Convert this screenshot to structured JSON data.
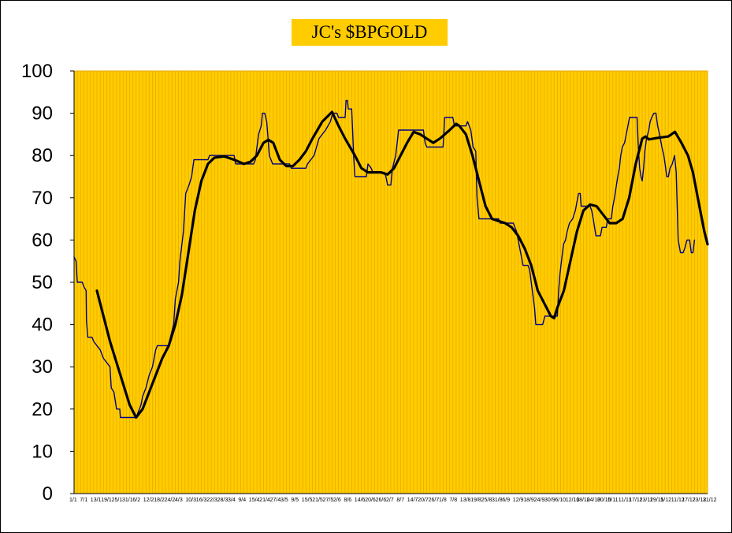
{
  "chart_data": {
    "type": "line",
    "title": "JC's $BPGOLD",
    "xlabel": "",
    "ylabel": "",
    "ylim": [
      0,
      100
    ],
    "yticks": [
      0,
      10,
      20,
      30,
      40,
      50,
      60,
      70,
      80,
      90,
      100
    ],
    "grid": "dense vertical gridlines",
    "legend": "none",
    "x_tick_labels": [
      "1/1",
      "7/1",
      "13/1",
      "19/1",
      "25/1",
      "31/1",
      "6/2",
      "12/2",
      "18/2",
      "24/2",
      "4/3",
      "10/3",
      "16/3",
      "22/3",
      "28/3",
      "3/4",
      "9/4",
      "15/4",
      "21/4",
      "27/4",
      "3/5",
      "9/5",
      "15/5",
      "21/5",
      "27/5",
      "2/6",
      "8/6",
      "14/6",
      "20/6",
      "26/6",
      "2/7",
      "8/7",
      "14/7",
      "20/7",
      "26/7",
      "1/8",
      "7/8",
      "13/8",
      "19/8",
      "25/8",
      "31/8",
      "6/9",
      "12/9",
      "18/9",
      "24/9",
      "30/9",
      "6/10",
      "12/10",
      "18/10",
      "24/10",
      "30/10",
      "5/11",
      "11/11",
      "17/11",
      "23/11",
      "29/11",
      "5/12",
      "11/12",
      "17/12",
      "23/12",
      "31/12"
    ],
    "colors": {
      "background": "#ffcc00",
      "grid": "#e6a800",
      "series_raw": "#000080",
      "series_smooth": "#000000",
      "plot_border": "#e6a800"
    },
    "series": [
      {
        "style": "thin navy step line",
        "points": [
          [
            0,
            56
          ],
          [
            0.6,
            55
          ],
          [
            1,
            50
          ],
          [
            2.5,
            50
          ],
          [
            3,
            49
          ],
          [
            3.7,
            48
          ],
          [
            3.8,
            41
          ],
          [
            4.2,
            37
          ],
          [
            5.5,
            37
          ],
          [
            6,
            36
          ],
          [
            7,
            35
          ],
          [
            8,
            34
          ],
          [
            9,
            32
          ],
          [
            10,
            31
          ],
          [
            11,
            30
          ],
          [
            11.4,
            25
          ],
          [
            12.2,
            24
          ],
          [
            13,
            20
          ],
          [
            14,
            20
          ],
          [
            14.2,
            18
          ],
          [
            19,
            18
          ],
          [
            19.5,
            19
          ],
          [
            20.5,
            21
          ],
          [
            21,
            23
          ],
          [
            22,
            25
          ],
          [
            23,
            28
          ],
          [
            24,
            30
          ],
          [
            25,
            34
          ],
          [
            25.5,
            35
          ],
          [
            29,
            35
          ],
          [
            29.5,
            37
          ],
          [
            30.5,
            40
          ],
          [
            31,
            46
          ],
          [
            32,
            50
          ],
          [
            32.4,
            55
          ],
          [
            33.5,
            62
          ],
          [
            34.2,
            71
          ],
          [
            35.2,
            73
          ],
          [
            36,
            75
          ],
          [
            36.7,
            79
          ],
          [
            41,
            79
          ],
          [
            41.5,
            80
          ],
          [
            49,
            80
          ],
          [
            49.5,
            78
          ],
          [
            55,
            78
          ],
          [
            55.5,
            79
          ],
          [
            56.5,
            85
          ],
          [
            57.3,
            87
          ],
          [
            57.7,
            90
          ],
          [
            58.4,
            90
          ],
          [
            59,
            88
          ],
          [
            59.3,
            85
          ],
          [
            59.8,
            80
          ],
          [
            60.8,
            78
          ],
          [
            66,
            78
          ],
          [
            66.5,
            77
          ],
          [
            71,
            77
          ],
          [
            71.5,
            78
          ],
          [
            73.5,
            80
          ],
          [
            75,
            84
          ],
          [
            77,
            86
          ],
          [
            78.5,
            88
          ],
          [
            79.2,
            90
          ],
          [
            80.5,
            90
          ],
          [
            81,
            89
          ],
          [
            83,
            89
          ],
          [
            83.3,
            93
          ],
          [
            83.7,
            93
          ],
          [
            84,
            91
          ],
          [
            85,
            91
          ],
          [
            85.3,
            86
          ],
          [
            85.6,
            80
          ],
          [
            86,
            75
          ],
          [
            89.5,
            75
          ],
          [
            90,
            78
          ],
          [
            91,
            77
          ],
          [
            91.5,
            76
          ],
          [
            95,
            76
          ],
          [
            95.5,
            75
          ],
          [
            96,
            73
          ],
          [
            97,
            73
          ],
          [
            97.5,
            77
          ],
          [
            98.5,
            80
          ],
          [
            99.4,
            86
          ],
          [
            107,
            86
          ],
          [
            107.5,
            83
          ],
          [
            108,
            82
          ],
          [
            113,
            82
          ],
          [
            113.5,
            89
          ],
          [
            116,
            89
          ],
          [
            116.5,
            87
          ],
          [
            120,
            87
          ],
          [
            120.5,
            88
          ],
          [
            121.5,
            86
          ],
          [
            122.2,
            82
          ],
          [
            123,
            81
          ],
          [
            123.4,
            70
          ],
          [
            124,
            65
          ],
          [
            130,
            65
          ],
          [
            130.5,
            64
          ],
          [
            134.5,
            64
          ],
          [
            135.5,
            62
          ],
          [
            136.5,
            58
          ],
          [
            137,
            56
          ],
          [
            137.5,
            54
          ],
          [
            139,
            54
          ],
          [
            139.5,
            53
          ],
          [
            140,
            50
          ],
          [
            140.5,
            47
          ],
          [
            141,
            44
          ],
          [
            141.4,
            40
          ],
          [
            143.5,
            40
          ],
          [
            144.2,
            42
          ],
          [
            148,
            42
          ],
          [
            148.4,
            48
          ],
          [
            148.8,
            52
          ],
          [
            149.4,
            56
          ],
          [
            149.9,
            59
          ],
          [
            150.5,
            60
          ],
          [
            151,
            62
          ],
          [
            151.7,
            64
          ],
          [
            152.7,
            65
          ],
          [
            153.5,
            67
          ],
          [
            154,
            69
          ],
          [
            154.5,
            71
          ],
          [
            155,
            71
          ],
          [
            155.3,
            68
          ],
          [
            158,
            68
          ],
          [
            158.5,
            67
          ],
          [
            159,
            65
          ],
          [
            159.4,
            63
          ],
          [
            159.8,
            61
          ],
          [
            161.2,
            61
          ],
          [
            161.7,
            63
          ],
          [
            163,
            63
          ],
          [
            163.4,
            65
          ],
          [
            164.5,
            65
          ],
          [
            165,
            68
          ],
          [
            165.5,
            70
          ],
          [
            165.9,
            72
          ],
          [
            166.5,
            75
          ],
          [
            167,
            77
          ],
          [
            167.4,
            80
          ],
          [
            167.9,
            82
          ],
          [
            168.6,
            83
          ],
          [
            169.1,
            85
          ],
          [
            169.6,
            87
          ],
          [
            170.1,
            89
          ],
          [
            172.4,
            89
          ],
          [
            172.8,
            82
          ],
          [
            173.2,
            77
          ],
          [
            173.6,
            75
          ],
          [
            174,
            74
          ],
          [
            174.4,
            77
          ],
          [
            174.8,
            81
          ],
          [
            175.3,
            84
          ],
          [
            176,
            86
          ],
          [
            176.4,
            88
          ],
          [
            176.9,
            89
          ],
          [
            177.6,
            90
          ],
          [
            178.2,
            90
          ],
          [
            178.7,
            87
          ],
          [
            179.3,
            85
          ],
          [
            180,
            82
          ],
          [
            180.6,
            80
          ],
          [
            181,
            78
          ],
          [
            181.5,
            75
          ],
          [
            182,
            75
          ],
          [
            182.5,
            77
          ],
          [
            183.2,
            78
          ],
          [
            183.9,
            80
          ],
          [
            184.4,
            76
          ],
          [
            185,
            60
          ],
          [
            185.7,
            57
          ],
          [
            186.5,
            57
          ],
          [
            187,
            58
          ],
          [
            187.7,
            60
          ],
          [
            188.5,
            60
          ],
          [
            189,
            57
          ],
          [
            189.5,
            57
          ],
          [
            190,
            60
          ]
        ]
      },
      {
        "style": "thick black smoothed line",
        "points": [
          [
            7,
            48
          ],
          [
            9,
            42
          ],
          [
            11,
            36
          ],
          [
            13,
            31
          ],
          [
            15,
            26
          ],
          [
            17,
            21
          ],
          [
            19,
            18
          ],
          [
            21,
            20
          ],
          [
            23,
            24
          ],
          [
            25,
            28
          ],
          [
            27,
            32
          ],
          [
            29,
            35
          ],
          [
            31,
            40
          ],
          [
            33,
            47
          ],
          [
            35,
            57
          ],
          [
            37,
            67
          ],
          [
            39,
            74
          ],
          [
            41,
            78
          ],
          [
            43,
            79.5
          ],
          [
            46,
            79.8
          ],
          [
            49,
            79
          ],
          [
            52,
            78
          ],
          [
            54,
            78.5
          ],
          [
            56,
            80
          ],
          [
            58,
            83
          ],
          [
            59.5,
            83.7
          ],
          [
            61,
            83
          ],
          [
            63,
            79
          ],
          [
            65,
            77.5
          ],
          [
            67,
            77.5
          ],
          [
            69,
            79
          ],
          [
            71,
            81
          ],
          [
            73,
            84
          ],
          [
            76,
            88
          ],
          [
            79,
            90.3
          ],
          [
            81,
            87
          ],
          [
            83,
            84
          ],
          [
            86,
            80
          ],
          [
            88,
            77
          ],
          [
            90,
            76
          ],
          [
            94,
            76
          ],
          [
            96,
            75.5
          ],
          [
            98,
            77
          ],
          [
            100,
            80
          ],
          [
            102,
            83
          ],
          [
            104,
            85.6
          ],
          [
            106,
            85
          ],
          [
            108,
            84
          ],
          [
            110,
            83
          ],
          [
            112,
            84
          ],
          [
            115,
            86
          ],
          [
            117,
            87.5
          ],
          [
            118,
            87
          ],
          [
            120,
            85
          ],
          [
            122,
            80
          ],
          [
            124,
            74
          ],
          [
            126,
            68
          ],
          [
            128,
            65
          ],
          [
            130,
            64.5
          ],
          [
            132,
            64
          ],
          [
            134,
            63
          ],
          [
            136,
            61
          ],
          [
            138,
            58
          ],
          [
            140,
            54
          ],
          [
            142,
            48
          ],
          [
            144,
            45
          ],
          [
            146,
            42
          ],
          [
            147,
            41.5
          ],
          [
            148,
            44
          ],
          [
            150,
            48
          ],
          [
            152,
            55
          ],
          [
            154,
            62
          ],
          [
            156,
            67
          ],
          [
            158,
            68.4
          ],
          [
            160,
            68
          ],
          [
            162,
            66
          ],
          [
            164,
            64
          ],
          [
            166,
            64
          ],
          [
            168,
            65
          ],
          [
            170,
            70
          ],
          [
            172,
            78
          ],
          [
            174,
            84
          ],
          [
            175,
            84.5
          ],
          [
            176,
            83.8
          ],
          [
            179,
            84.2
          ],
          [
            182,
            84.5
          ],
          [
            184,
            85.6
          ],
          [
            186,
            83
          ],
          [
            188,
            80
          ],
          [
            189.5,
            76
          ],
          [
            190.5,
            72
          ],
          [
            192,
            66
          ],
          [
            193,
            62
          ],
          [
            194,
            59
          ]
        ]
      }
    ]
  }
}
